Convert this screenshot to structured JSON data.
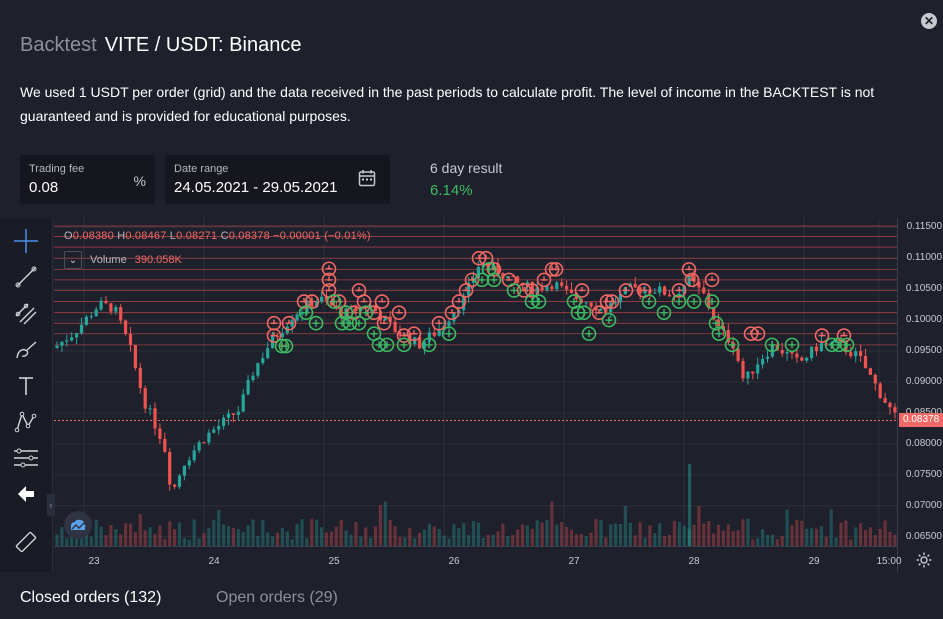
{
  "header": {
    "prefix": "Backtest",
    "pair": "VITE / USDT: Binance",
    "close_icon": "close-icon"
  },
  "description": "We used 1 USDT per order (grid) and the data received in the past periods to calculate profit. The level of income in the BACKTEST is not guaranteed and is provided for educational purposes.",
  "trading_fee": {
    "label": "Trading fee",
    "value": "0.08",
    "suffix": "%"
  },
  "date_range": {
    "label": "Date range",
    "value": "24.05.2021 - 29.05.2021",
    "icon": "calendar-icon"
  },
  "result": {
    "label": "6 day result",
    "value": "6.14%",
    "color": "#3dbb63"
  },
  "chart": {
    "ohlc": {
      "o_label": "O",
      "o": "0.08380",
      "h_label": "H",
      "h": "0.08467",
      "l_label": "L",
      "l": "0.08271",
      "c_label": "C",
      "c": "0.08378",
      "change": "−0.00001 (−0.01%)"
    },
    "volume_label": "Volume",
    "volume_value": "390.058K",
    "current_price": "0.08378",
    "price_ticks": [
      "0.11500",
      "0.11000",
      "0.10500",
      "0.10000",
      "0.09500",
      "0.09000",
      "0.08500",
      "0.08000",
      "0.07500",
      "0.07000",
      "0.06500"
    ],
    "time_ticks": [
      "23",
      "24",
      "25",
      "26",
      "27",
      "28",
      "29",
      "15:00"
    ],
    "up_color": "#26a69a",
    "down_color": "#ef5350"
  },
  "toolbar": {
    "tools": [
      "crosshair-icon",
      "trend-line-icon",
      "fib-icon",
      "brush-icon",
      "text-icon",
      "pattern-icon",
      "ruler-lines-icon",
      "back-arrow-icon",
      "measure-icon"
    ]
  },
  "tabs": [
    {
      "label": "Closed orders (132)",
      "active": true
    },
    {
      "label": "Open orders (29)",
      "active": false
    }
  ]
}
